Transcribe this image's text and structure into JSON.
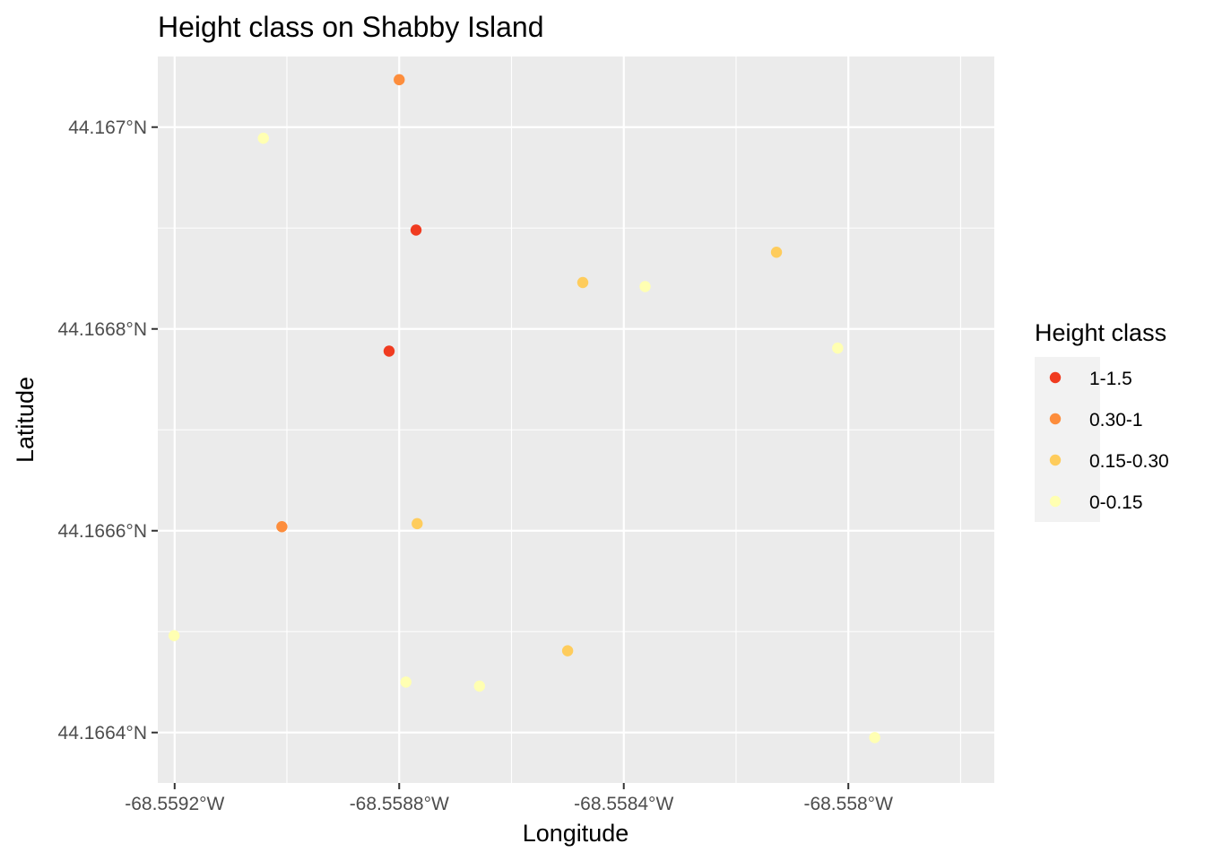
{
  "chart_data": {
    "type": "scatter",
    "title": "Height class on Shabby Island",
    "xlabel": "Longitude",
    "ylabel": "Latitude",
    "xlim": [
      -68.55923,
      -68.55774
    ],
    "ylim": [
      44.16635,
      44.16707
    ],
    "x_ticks": [
      {
        "value": -68.5592,
        "label": "-68.5592°W"
      },
      {
        "value": -68.5588,
        "label": "-68.5588°W"
      },
      {
        "value": -68.5584,
        "label": "-68.5584°W"
      },
      {
        "value": -68.558,
        "label": "-68.558°W"
      }
    ],
    "y_ticks": [
      {
        "value": 44.1664,
        "label": "44.1664°N"
      },
      {
        "value": 44.1666,
        "label": "44.1666°N"
      },
      {
        "value": 44.1668,
        "label": "44.1668°N"
      },
      {
        "value": 44.167,
        "label": "44.167°N"
      }
    ],
    "grid": true,
    "legend": {
      "title": "Height class",
      "placement": "right",
      "entries": [
        {
          "label": "1-1.5",
          "color": "#f03b20"
        },
        {
          "label": "0.30-1",
          "color": "#fd8d3c"
        },
        {
          "label": "0.15-0.30",
          "color": "#fecc5c"
        },
        {
          "label": "0-0.15",
          "color": "#ffffb2"
        }
      ]
    },
    "points": [
      {
        "x": -68.55877,
        "y": 44.166898,
        "class": "1-1.5"
      },
      {
        "x": -68.558818,
        "y": 44.166778,
        "class": "1-1.5"
      },
      {
        "x": -68.5588,
        "y": 44.167047,
        "class": "0.30-1"
      },
      {
        "x": -68.559009,
        "y": 44.166604,
        "class": "0.30-1"
      },
      {
        "x": -68.558473,
        "y": 44.166846,
        "class": "0.15-0.30"
      },
      {
        "x": -68.558128,
        "y": 44.166876,
        "class": "0.15-0.30"
      },
      {
        "x": -68.558768,
        "y": 44.166607,
        "class": "0.15-0.30"
      },
      {
        "x": -68.5585,
        "y": 44.166481,
        "class": "0.15-0.30"
      },
      {
        "x": -68.559042,
        "y": 44.166989,
        "class": "0-0.15"
      },
      {
        "x": -68.558362,
        "y": 44.166842,
        "class": "0-0.15"
      },
      {
        "x": -68.558019,
        "y": 44.166781,
        "class": "0-0.15"
      },
      {
        "x": -68.559201,
        "y": 44.166496,
        "class": "0-0.15"
      },
      {
        "x": -68.558788,
        "y": 44.16645,
        "class": "0-0.15"
      },
      {
        "x": -68.558657,
        "y": 44.166446,
        "class": "0-0.15"
      },
      {
        "x": -68.557953,
        "y": 44.166395,
        "class": "0-0.15"
      }
    ]
  }
}
